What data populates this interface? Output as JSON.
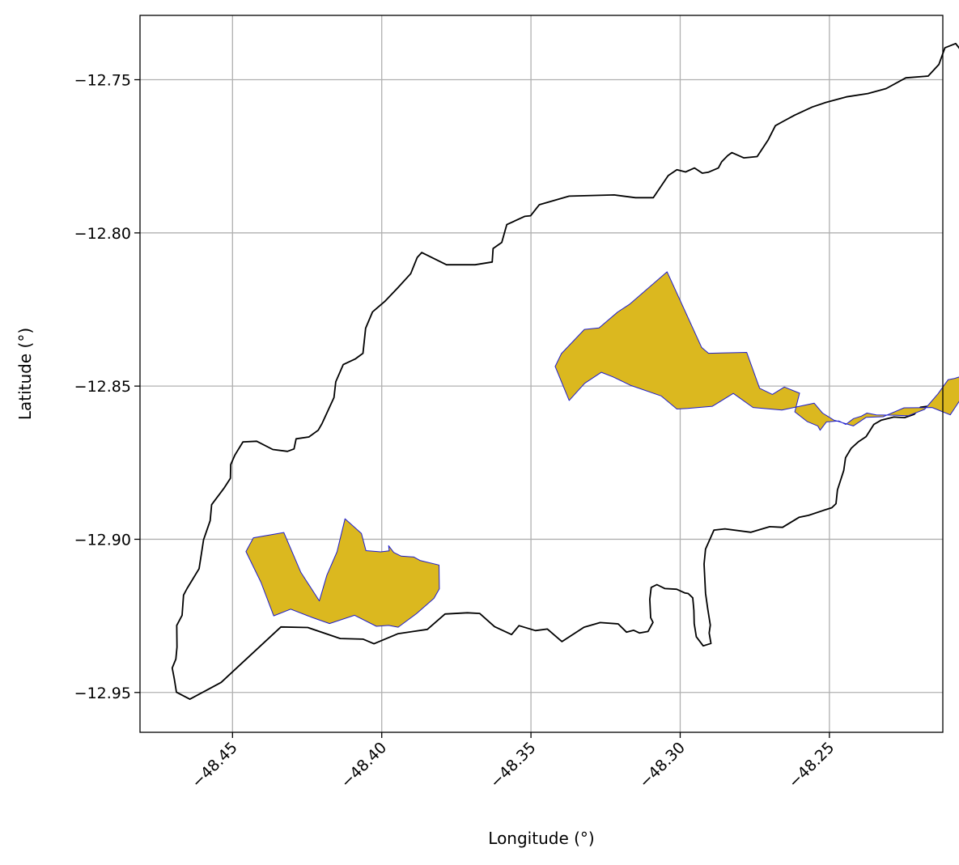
{
  "chart_data": {
    "type": "map",
    "xlabel": "Longitude (°)",
    "ylabel": "Latitude (°)",
    "xlim": [
      -48.481,
      -48.212
    ],
    "ylim": [
      -12.963,
      -12.729
    ],
    "x_ticks": [
      {
        "value": -48.45,
        "label": "−48.45"
      },
      {
        "value": -48.4,
        "label": "−48.40"
      },
      {
        "value": -48.35,
        "label": "−48.35"
      },
      {
        "value": -48.3,
        "label": "−48.30"
      },
      {
        "value": -48.25,
        "label": "−48.25"
      }
    ],
    "y_ticks": [
      {
        "value": -12.75,
        "label": "−12.75"
      },
      {
        "value": -12.8,
        "label": "−12.80"
      },
      {
        "value": -12.85,
        "label": "−12.85"
      },
      {
        "value": -12.9,
        "label": "−12.90"
      },
      {
        "value": -12.95,
        "label": "−12.95"
      }
    ],
    "grid": true,
    "colors": {
      "boundary": "#000000",
      "region_fill": "#dbb81f",
      "region_edge": "#1c1cd0",
      "grid": "#b0b0b0"
    },
    "boundary": [
      [
        -48.4688,
        -12.9499
      ],
      [
        -48.4643,
        -12.9522
      ],
      [
        -48.4538,
        -12.9467
      ],
      [
        -48.4488,
        -12.9422
      ],
      [
        -48.4338,
        -12.9286
      ],
      [
        -48.4248,
        -12.9288
      ],
      [
        -48.4139,
        -12.9324
      ],
      [
        -48.4062,
        -12.9326
      ],
      [
        -48.4026,
        -12.9341
      ],
      [
        -48.3945,
        -12.9308
      ],
      [
        -48.3847,
        -12.9294
      ],
      [
        -48.3788,
        -12.9244
      ],
      [
        -48.3713,
        -12.924
      ],
      [
        -48.3672,
        -12.9242
      ],
      [
        -48.3622,
        -12.9285
      ],
      [
        -48.3565,
        -12.9311
      ],
      [
        -48.354,
        -12.9282
      ],
      [
        -48.3485,
        -12.9298
      ],
      [
        -48.3445,
        -12.9293
      ],
      [
        -48.3396,
        -12.9334
      ],
      [
        -48.3322,
        -12.9287
      ],
      [
        -48.3268,
        -12.9272
      ],
      [
        -48.3208,
        -12.9276
      ],
      [
        -48.318,
        -12.9303
      ],
      [
        -48.3156,
        -12.9297
      ],
      [
        -48.3136,
        -12.9306
      ],
      [
        -48.3108,
        -12.9301
      ],
      [
        -48.3091,
        -12.9271
      ],
      [
        -48.3099,
        -12.9256
      ],
      [
        -48.3102,
        -12.9196
      ],
      [
        -48.3097,
        -12.9157
      ],
      [
        -48.3078,
        -12.9148
      ],
      [
        -48.3051,
        -12.9161
      ],
      [
        -48.3012,
        -12.9163
      ],
      [
        -48.2985,
        -12.9175
      ],
      [
        -48.2973,
        -12.9177
      ],
      [
        -48.2958,
        -12.9191
      ],
      [
        -48.2954,
        -12.9232
      ],
      [
        -48.2953,
        -12.9275
      ],
      [
        -48.2946,
        -12.9318
      ],
      [
        -48.2923,
        -12.9348
      ],
      [
        -48.2897,
        -12.934
      ],
      [
        -48.2903,
        -12.9306
      ],
      [
        -48.2899,
        -12.928
      ],
      [
        -48.2908,
        -12.9225
      ],
      [
        -48.2915,
        -12.9176
      ],
      [
        -48.292,
        -12.9081
      ],
      [
        -48.2915,
        -12.9032
      ],
      [
        -48.2887,
        -12.897
      ],
      [
        -48.285,
        -12.8966
      ],
      [
        -48.2763,
        -12.8977
      ],
      [
        -48.27,
        -12.8959
      ],
      [
        -48.2657,
        -12.8961
      ],
      [
        -48.2601,
        -12.8928
      ],
      [
        -48.257,
        -12.8922
      ],
      [
        -48.2518,
        -12.8905
      ],
      [
        -48.2492,
        -12.8897
      ],
      [
        -48.2478,
        -12.8884
      ],
      [
        -48.2473,
        -12.8839
      ],
      [
        -48.2452,
        -12.8775
      ],
      [
        -48.2446,
        -12.8734
      ],
      [
        -48.2427,
        -12.8703
      ],
      [
        -48.2402,
        -12.8681
      ],
      [
        -48.2377,
        -12.8665
      ],
      [
        -48.2351,
        -12.8625
      ],
      [
        -48.2326,
        -12.8611
      ],
      [
        -48.2284,
        -12.8601
      ],
      [
        -48.2248,
        -12.8603
      ],
      [
        -48.2216,
        -12.8592
      ],
      [
        -48.2195,
        -12.8569
      ],
      [
        -48.2151,
        -12.8563
      ],
      [
        -48.2134,
        -12.8558
      ],
      [
        -48.2089,
        -12.8512
      ],
      [
        -48.2023,
        -12.8506
      ],
      [
        -48.1996,
        -12.8478
      ],
      [
        -48.1991,
        -12.8434
      ],
      [
        -48.1939,
        -12.8384
      ],
      [
        -48.1909,
        -12.8335
      ],
      [
        -48.1877,
        -12.8273
      ],
      [
        -48.1847,
        -12.8206
      ],
      [
        -48.1848,
        -12.816
      ],
      [
        -48.1822,
        -12.8089
      ],
      [
        -48.179,
        -12.801
      ],
      [
        -48.1784,
        -12.7965
      ],
      [
        -48.1788,
        -12.7918
      ],
      [
        -48.1775,
        -12.7881
      ],
      [
        -48.1739,
        -12.7836
      ],
      [
        -48.171,
        -12.7794
      ],
      [
        -48.1646,
        -12.7731
      ],
      [
        -48.1601,
        -12.7697
      ],
      [
        -48.1568,
        -12.7662
      ],
      [
        -48.1549,
        -12.7628
      ],
      [
        -48.1527,
        -12.7586
      ],
      [
        -48.1529,
        -12.7557
      ],
      [
        -48.1521,
        -12.7515
      ],
      [
        -48.1542,
        -12.7491
      ],
      [
        -48.1594,
        -12.7457
      ],
      [
        -48.1706,
        -12.7429
      ],
      [
        -48.1792,
        -12.7423
      ],
      [
        -48.1884,
        -12.7487
      ],
      [
        -48.1981,
        -12.7495
      ],
      [
        -48.2047,
        -12.742
      ],
      [
        -48.2077,
        -12.7382
      ],
      [
        -48.2113,
        -12.7396
      ],
      [
        -48.2133,
        -12.745
      ],
      [
        -48.2169,
        -12.7488
      ],
      [
        -48.2244,
        -12.7494
      ],
      [
        -48.231,
        -12.7529
      ],
      [
        -48.2371,
        -12.7545
      ],
      [
        -48.2443,
        -12.7556
      ],
      [
        -48.2511,
        -12.7574
      ],
      [
        -48.2557,
        -12.7589
      ],
      [
        -48.2617,
        -12.7616
      ],
      [
        -48.2655,
        -12.7636
      ],
      [
        -48.2681,
        -12.765
      ],
      [
        -48.2705,
        -12.7696
      ],
      [
        -48.2742,
        -12.7751
      ],
      [
        -48.2787,
        -12.7755
      ],
      [
        -48.2827,
        -12.7738
      ],
      [
        -48.2841,
        -12.7748
      ],
      [
        -48.2861,
        -12.7768
      ],
      [
        -48.2872,
        -12.7788
      ],
      [
        -48.2906,
        -12.7802
      ],
      [
        -48.2926,
        -12.7805
      ],
      [
        -48.2952,
        -12.7788
      ],
      [
        -48.2982,
        -12.7801
      ],
      [
        -48.3011,
        -12.7794
      ],
      [
        -48.304,
        -12.7813
      ],
      [
        -48.309,
        -12.7885
      ],
      [
        -48.315,
        -12.7885
      ],
      [
        -48.3221,
        -12.7876
      ],
      [
        -48.3372,
        -12.788
      ],
      [
        -48.3472,
        -12.7908
      ],
      [
        -48.3501,
        -12.7944
      ],
      [
        -48.3521,
        -12.7946
      ],
      [
        -48.3581,
        -12.7973
      ],
      [
        -48.3598,
        -12.8031
      ],
      [
        -48.3627,
        -12.8051
      ],
      [
        -48.363,
        -12.8095
      ],
      [
        -48.3687,
        -12.8104
      ],
      [
        -48.3783,
        -12.8104
      ],
      [
        -48.3866,
        -12.8064
      ],
      [
        -48.3881,
        -12.808
      ],
      [
        -48.3903,
        -12.8133
      ],
      [
        -48.3946,
        -12.8179
      ],
      [
        -48.3988,
        -12.8222
      ],
      [
        -48.4031,
        -12.8258
      ],
      [
        -48.4054,
        -12.8311
      ],
      [
        -48.4063,
        -12.8393
      ],
      [
        -48.4088,
        -12.8411
      ],
      [
        -48.4129,
        -12.843
      ],
      [
        -48.4154,
        -12.8486
      ],
      [
        -48.416,
        -12.8537
      ],
      [
        -48.42,
        -12.8622
      ],
      [
        -48.4213,
        -12.8644
      ],
      [
        -48.4244,
        -12.8666
      ],
      [
        -48.4287,
        -12.8672
      ],
      [
        -48.4294,
        -12.8705
      ],
      [
        -48.4316,
        -12.8713
      ],
      [
        -48.4365,
        -12.8707
      ],
      [
        -48.4419,
        -12.868
      ],
      [
        -48.4465,
        -12.8682
      ],
      [
        -48.4492,
        -12.8725
      ],
      [
        -48.4506,
        -12.8756
      ],
      [
        -48.4507,
        -12.8801
      ],
      [
        -48.4529,
        -12.8834
      ],
      [
        -48.457,
        -12.8887
      ],
      [
        -48.4575,
        -12.8939
      ],
      [
        -48.4597,
        -12.9002
      ],
      [
        -48.4603,
        -12.904
      ],
      [
        -48.4612,
        -12.9096
      ],
      [
        -48.4637,
        -12.9136
      ],
      [
        -48.4652,
        -12.916
      ],
      [
        -48.4664,
        -12.9182
      ],
      [
        -48.4669,
        -12.9248
      ],
      [
        -48.4687,
        -12.9281
      ],
      [
        -48.4686,
        -12.9352
      ],
      [
        -48.469,
        -12.9391
      ],
      [
        -48.4702,
        -12.942
      ],
      [
        -48.4695,
        -12.9456
      ],
      [
        -48.4688,
        -12.9499
      ]
    ],
    "regions": [
      {
        "polygon": [
          [
            -48.4455,
            -12.904
          ],
          [
            -48.443,
            -12.8995
          ],
          [
            -48.4328,
            -12.8978
          ],
          [
            -48.4271,
            -12.9108
          ],
          [
            -48.4209,
            -12.9201
          ],
          [
            -48.4184,
            -12.9117
          ],
          [
            -48.415,
            -12.9041
          ],
          [
            -48.4123,
            -12.8933
          ],
          [
            -48.4068,
            -12.8981
          ],
          [
            -48.4053,
            -12.9037
          ],
          [
            -48.4003,
            -12.9041
          ],
          [
            -48.3975,
            -12.9038
          ],
          [
            -48.3977,
            -12.9021
          ],
          [
            -48.396,
            -12.9043
          ],
          [
            -48.3935,
            -12.9055
          ],
          [
            -48.3892,
            -12.9058
          ],
          [
            -48.3872,
            -12.9069
          ],
          [
            -48.3808,
            -12.9084
          ],
          [
            -48.3807,
            -12.9162
          ],
          [
            -48.3825,
            -12.9193
          ],
          [
            -48.3884,
            -12.9243
          ],
          [
            -48.3945,
            -12.9287
          ],
          [
            -48.3977,
            -12.9281
          ],
          [
            -48.4018,
            -12.9284
          ],
          [
            -48.4091,
            -12.9248
          ],
          [
            -48.4175,
            -12.9275
          ],
          [
            -48.4231,
            -12.9256
          ],
          [
            -48.4305,
            -12.9228
          ],
          [
            -48.4362,
            -12.925
          ],
          [
            -48.4405,
            -12.914
          ],
          [
            -48.4455,
            -12.904
          ]
        ]
      },
      {
        "polygon": [
          [
            -48.3419,
            -12.8436
          ],
          [
            -48.3398,
            -12.8394
          ],
          [
            -48.3321,
            -12.8315
          ],
          [
            -48.3272,
            -12.831
          ],
          [
            -48.3209,
            -12.8258
          ],
          [
            -48.317,
            -12.8233
          ],
          [
            -48.3044,
            -12.8127
          ],
          [
            -48.2928,
            -12.8374
          ],
          [
            -48.2905,
            -12.8393
          ],
          [
            -48.2777,
            -12.839
          ],
          [
            -48.2734,
            -12.8507
          ],
          [
            -48.2691,
            -12.8527
          ],
          [
            -48.2651,
            -12.8503
          ],
          [
            -48.26,
            -12.8523
          ],
          [
            -48.2616,
            -12.8584
          ],
          [
            -48.2574,
            -12.8616
          ],
          [
            -48.2539,
            -12.863
          ],
          [
            -48.2531,
            -12.8644
          ],
          [
            -48.251,
            -12.8617
          ],
          [
            -48.2468,
            -12.8614
          ],
          [
            -48.2445,
            -12.8625
          ],
          [
            -48.2419,
            -12.8606
          ],
          [
            -48.2393,
            -12.8598
          ],
          [
            -48.2374,
            -12.8588
          ],
          [
            -48.2343,
            -12.8594
          ],
          [
            -48.228,
            -12.8595
          ],
          [
            -48.2236,
            -12.8597
          ],
          [
            -48.2181,
            -12.8576
          ],
          [
            -48.2136,
            -12.8525
          ],
          [
            -48.2102,
            -12.8479
          ],
          [
            -48.2081,
            -12.8475
          ],
          [
            -48.2032,
            -12.846
          ],
          [
            -48.199,
            -12.8425
          ],
          [
            -48.1963,
            -12.8415
          ],
          [
            -48.2045,
            -12.852
          ],
          [
            -48.2095,
            -12.8594
          ],
          [
            -48.2156,
            -12.857
          ],
          [
            -48.225,
            -12.8571
          ],
          [
            -48.232,
            -12.86
          ],
          [
            -48.2377,
            -12.8602
          ],
          [
            -48.242,
            -12.863
          ],
          [
            -48.2485,
            -12.8611
          ],
          [
            -48.2523,
            -12.8588
          ],
          [
            -48.2551,
            -12.8556
          ],
          [
            -48.2659,
            -12.8578
          ],
          [
            -48.2756,
            -12.857
          ],
          [
            -48.2822,
            -12.8524
          ],
          [
            -48.2892,
            -12.8566
          ],
          [
            -48.2975,
            -12.8573
          ],
          [
            -48.3011,
            -12.8575
          ],
          [
            -48.3064,
            -12.8532
          ],
          [
            -48.3165,
            -12.8498
          ],
          [
            -48.3225,
            -12.847
          ],
          [
            -48.3264,
            -12.8455
          ],
          [
            -48.332,
            -12.8491
          ],
          [
            -48.3372,
            -12.8547
          ],
          [
            -48.3419,
            -12.8436
          ]
        ]
      }
    ]
  }
}
